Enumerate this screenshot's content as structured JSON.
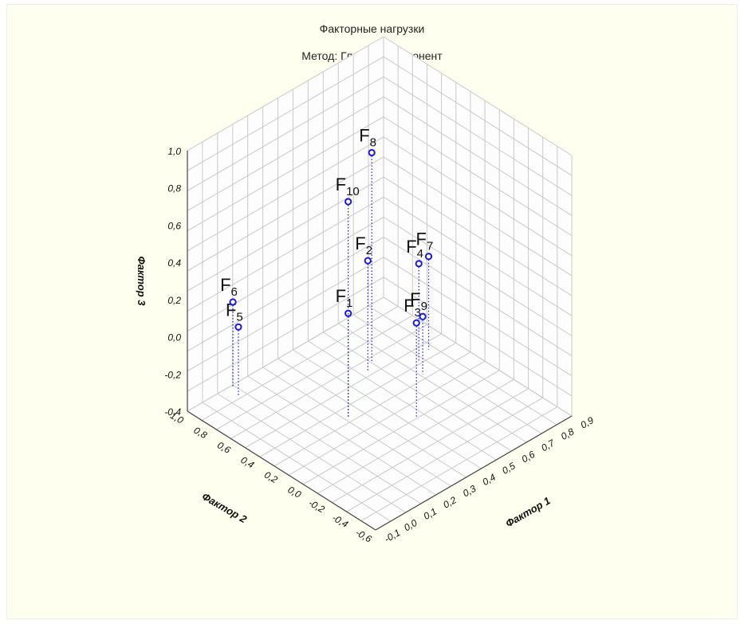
{
  "chart_data": {
    "type": "scatter",
    "dimensions": 3,
    "title": "Факторные нагрузки",
    "subtitle": "Метод: Главных компонент",
    "xlabel": "Фактор 1",
    "ylabel": "Фактор 2",
    "zlabel": "Фактор 3",
    "xlim": [
      -0.1,
      0.9
    ],
    "ylim": [
      -0.6,
      1.0
    ],
    "zlim": [
      -0.4,
      1.0
    ],
    "x_ticks": [
      "-0.1",
      "0.0",
      "0.1",
      "0.2",
      "0.3",
      "0.4",
      "0.5",
      "0.6",
      "0.7",
      "0.8",
      "0.9"
    ],
    "y_ticks": [
      "-0.6",
      "-0.4",
      "-0.2",
      "0.0",
      "0.2",
      "0.4",
      "0.6",
      "0.8",
      "1.0"
    ],
    "z_ticks": [
      "-0.4",
      "-0.2",
      "0.0",
      "0.2",
      "0.4",
      "0.6",
      "0.8",
      "1.0"
    ],
    "points": [
      {
        "label": "F",
        "sub": "1",
        "x": 0.3,
        "y": 0.3,
        "z": 0.16
      },
      {
        "label": "F",
        "sub": "2",
        "x": 0.55,
        "y": 0.55,
        "z": 0.19
      },
      {
        "label": "F",
        "sub": "3",
        "x": 0.48,
        "y": 0.02,
        "z": 0.11
      },
      {
        "label": "F",
        "sub": "4",
        "x": 0.72,
        "y": 0.4,
        "z": 0.13
      },
      {
        "label": "F",
        "sub": "5",
        "x": 0.1,
        "y": 0.9,
        "z": -0.03
      },
      {
        "label": "F",
        "sub": "6",
        "x": 0.12,
        "y": 0.98,
        "z": 0.06
      },
      {
        "label": "F",
        "sub": "7",
        "x": 0.8,
        "y": 0.45,
        "z": 0.1
      },
      {
        "label": "F",
        "sub": "8",
        "x": 0.6,
        "y": 0.6,
        "z": 0.72
      },
      {
        "label": "F",
        "sub": "9",
        "x": 0.68,
        "y": 0.3,
        "z": -0.09
      },
      {
        "label": "F",
        "sub": "10",
        "x": 0.3,
        "y": 0.3,
        "z": 0.76
      }
    ],
    "grid": true,
    "marker_color": "#1a1adc",
    "dropline_color": "#1a1adc"
  }
}
